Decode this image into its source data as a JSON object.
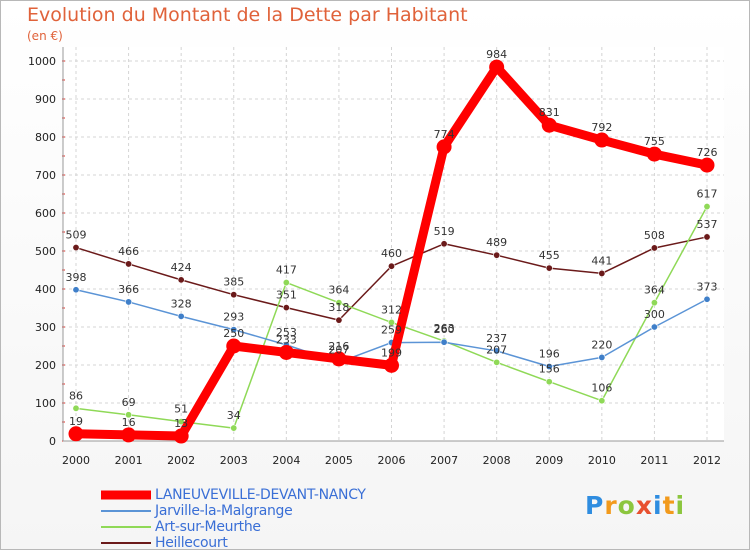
{
  "title": "Evolution du Montant de la Dette par Habitant",
  "unit_label": "(en €)",
  "logo_text": [
    "P",
    "r",
    "o",
    "x",
    "i",
    "t",
    "i"
  ],
  "logo_colors": [
    "#2f8de0",
    "#f29a1c",
    "#8cc63e",
    "#e8502f",
    "#2f8de0",
    "#f29a1c",
    "#8cc63e"
  ],
  "chart_data": {
    "type": "line",
    "title": "Evolution du Montant de la Dette par Habitant",
    "ylabel": "(en €)",
    "x": [
      "2000",
      "2001",
      "2002",
      "2003",
      "2004",
      "2005",
      "2006",
      "2007",
      "2008",
      "2009",
      "2010",
      "2011",
      "2012"
    ],
    "y_ticks": [
      "0",
      "100",
      "200",
      "300",
      "400",
      "500",
      "600",
      "700",
      "800",
      "900",
      "1000"
    ],
    "ylim": [
      0,
      1000
    ],
    "grid": true,
    "legend_position": "bottom-left",
    "series": [
      {
        "name": "Heillecourt",
        "color": "#6b1a1a",
        "values": [
          509,
          466,
          424,
          385,
          351,
          318,
          460,
          519,
          489,
          455,
          441,
          508,
          537
        ]
      },
      {
        "name": "Art-sur-Meurthe",
        "color": "#8fd957",
        "values": [
          86,
          69,
          51,
          34,
          417,
          364,
          312,
          263,
          207,
          156,
          106,
          364,
          617
        ]
      },
      {
        "name": "Jarville-la-Malgrange",
        "color": "#5b94d6",
        "values": [
          398,
          366,
          328,
          293,
          253,
          207,
          259,
          260,
          237,
          196,
          220,
          300,
          373
        ]
      },
      {
        "name": "LANEUVEVILLE-DEVANT-NANCY",
        "color": "#ff0000",
        "values": [
          19,
          16,
          13,
          250,
          233,
          216,
          199,
          774,
          984,
          831,
          792,
          755,
          726
        ]
      }
    ],
    "data_labels": [
      {
        "series": "Heillecourt",
        "values": [
          "509",
          "466",
          "424",
          "385",
          "351",
          "318",
          "460",
          "519",
          "489",
          "455",
          "441",
          "508",
          "537"
        ]
      },
      {
        "series": "Art-sur-Meurthe",
        "values": [
          "86",
          "69",
          "51",
          "34",
          "417",
          "364",
          "312",
          "263",
          "207",
          "156",
          "106",
          "364",
          "617"
        ]
      },
      {
        "series": "Jarville-la-Malgrange",
        "values": [
          "398",
          "366",
          "328",
          "293",
          "253",
          "207",
          "259",
          "260",
          "237",
          "196",
          "220",
          "300",
          "373"
        ]
      },
      {
        "series": "LANEUVEVILLE-DEVANT-NANCY",
        "values": [
          "19",
          "16",
          "13",
          "250",
          "233",
          "216",
          "199",
          "774",
          "984",
          "831",
          "792",
          "755",
          "726"
        ]
      }
    ]
  },
  "legend": [
    {
      "label": "LANEUVEVILLE-DEVANT-NANCY",
      "color": "#ff0000",
      "thick": true
    },
    {
      "label": "Jarville-la-Malgrange",
      "color": "#5b94d6",
      "thick": false
    },
    {
      "label": "Art-sur-Meurthe",
      "color": "#8fd957",
      "thick": false
    },
    {
      "label": "Heillecourt",
      "color": "#6b1a1a",
      "thick": false
    }
  ]
}
